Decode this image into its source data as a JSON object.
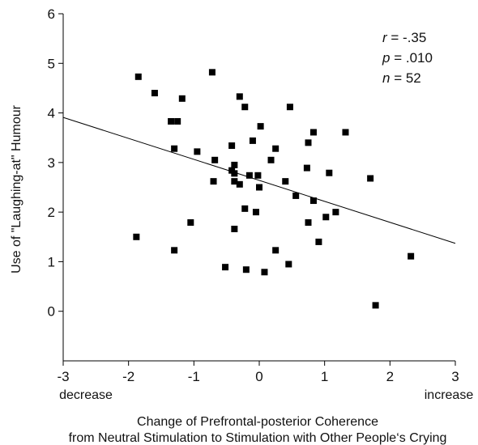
{
  "chart_data": {
    "type": "scatter",
    "title": "",
    "xlabel_line1": "Change of Prefrontal-posterior Coherence",
    "xlabel_line2": "from Neutral Stimulation to Stimulation with Other People‘s Crying",
    "ylabel": "Use of \"Laughing-at\" Humour",
    "x_end_labels": {
      "left": "decrease",
      "right": "increase"
    },
    "xlim": [
      -3,
      3
    ],
    "ylim": [
      -1,
      6
    ],
    "x_ticks": [
      -3,
      -2,
      -1,
      0,
      1,
      2,
      3
    ],
    "y_ticks": [
      0,
      1,
      2,
      3,
      4,
      5,
      6
    ],
    "x_tick_labels": [
      "-3",
      "-2",
      "-1",
      "0",
      "1",
      "2",
      "3"
    ],
    "y_tick_labels": [
      "0",
      "1",
      "2",
      "3",
      "4",
      "5",
      "6"
    ],
    "grid": false,
    "stats": [
      {
        "sym": "r",
        "rest": " = -.35"
      },
      {
        "sym": "p",
        "rest": " = .010"
      },
      {
        "sym": "n",
        "rest": " = 52"
      }
    ],
    "regression_line": {
      "x": [
        -3,
        3
      ],
      "y": [
        3.91,
        1.37
      ]
    },
    "points": [
      [
        -1.85,
        4.73
      ],
      [
        -1.6,
        4.4
      ],
      [
        -1.35,
        3.83
      ],
      [
        -1.25,
        3.83
      ],
      [
        -1.18,
        4.29
      ],
      [
        -1.3,
        3.28
      ],
      [
        -0.95,
        3.22
      ],
      [
        -0.72,
        4.82
      ],
      [
        -0.68,
        3.05
      ],
      [
        -0.7,
        2.62
      ],
      [
        -0.42,
        3.34
      ],
      [
        -0.38,
        2.95
      ],
      [
        -0.38,
        2.78
      ],
      [
        -0.38,
        2.62
      ],
      [
        -0.3,
        4.33
      ],
      [
        -0.22,
        4.12
      ],
      [
        -0.3,
        2.56
      ],
      [
        -0.15,
        2.74
      ],
      [
        -0.1,
        3.44
      ],
      [
        -0.02,
        2.74
      ],
      [
        0.0,
        2.5
      ],
      [
        0.02,
        3.73
      ],
      [
        -0.05,
        2.0
      ],
      [
        -0.22,
        2.07
      ],
      [
        -0.38,
        1.66
      ],
      [
        0.18,
        3.05
      ],
      [
        0.25,
        3.28
      ],
      [
        0.4,
        2.62
      ],
      [
        0.47,
        4.12
      ],
      [
        0.56,
        2.33
      ],
      [
        0.73,
        2.89
      ],
      [
        0.75,
        3.4
      ],
      [
        0.83,
        3.61
      ],
      [
        0.83,
        2.23
      ],
      [
        0.75,
        1.79
      ],
      [
        1.07,
        2.79
      ],
      [
        1.02,
        1.9
      ],
      [
        1.17,
        2.0
      ],
      [
        1.32,
        3.61
      ],
      [
        0.91,
        1.4
      ],
      [
        -1.88,
        1.5
      ],
      [
        -1.3,
        1.23
      ],
      [
        -1.05,
        1.79
      ],
      [
        0.25,
        1.23
      ],
      [
        0.45,
        0.95
      ],
      [
        -0.52,
        0.89
      ],
      [
        -0.2,
        0.84
      ],
      [
        0.08,
        0.79
      ],
      [
        1.7,
        2.68
      ],
      [
        2.32,
        1.11
      ],
      [
        1.78,
        0.12
      ],
      [
        -0.42,
        2.84
      ]
    ]
  }
}
